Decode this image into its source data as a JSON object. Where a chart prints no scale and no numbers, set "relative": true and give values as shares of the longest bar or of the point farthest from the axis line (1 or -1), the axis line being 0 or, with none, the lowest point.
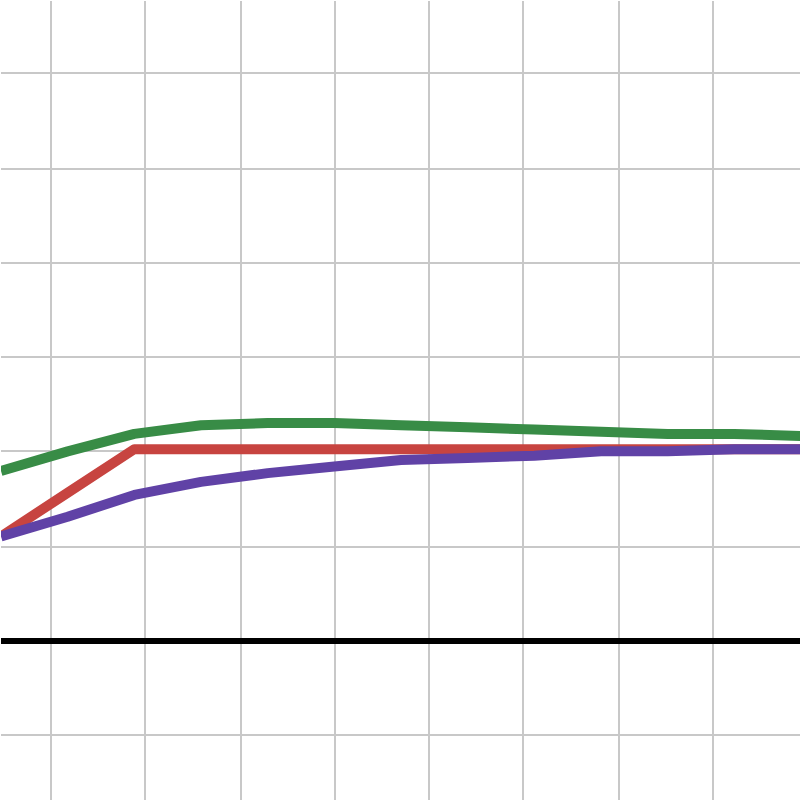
{
  "chart_data": {
    "type": "line",
    "relative": true,
    "grid": true,
    "marker": "none",
    "line_style": "solid",
    "tick_labels": false,
    "categories": [
      null,
      null,
      null,
      null,
      null,
      null,
      null,
      null,
      null,
      null,
      null,
      null,
      null
    ],
    "series": [
      {
        "color": "#c74440",
        "values": [
          0.48,
          0.68,
          0.88,
          0.88,
          0.88,
          0.88,
          0.88,
          0.88,
          0.88,
          0.88,
          0.88,
          0.88,
          0.88
        ]
      },
      {
        "color": "#6042a6",
        "values": [
          0.48,
          0.57,
          0.67,
          0.73,
          0.77,
          0.8,
          0.83,
          0.84,
          0.85,
          0.87,
          0.87,
          0.88,
          0.88
        ]
      },
      {
        "color": "#388c46",
        "values": [
          0.78,
          0.87,
          0.95,
          0.99,
          1,
          1,
          0.99,
          0.98,
          0.97,
          0.96,
          0.95,
          0.95,
          0.94
        ]
      }
    ]
  }
}
